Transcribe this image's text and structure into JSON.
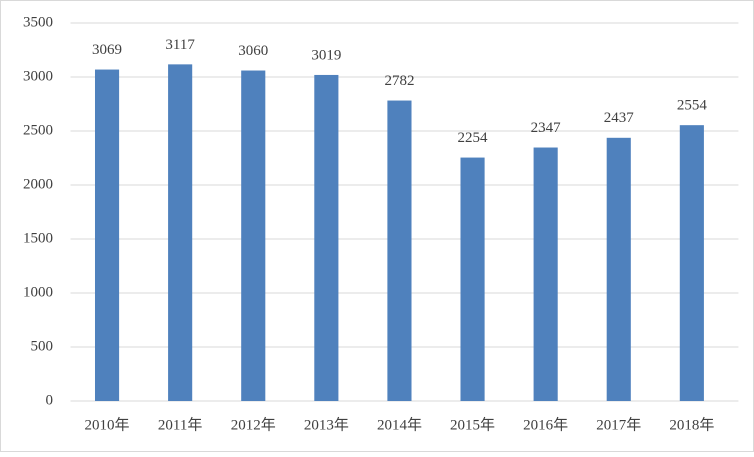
{
  "chart_data": {
    "type": "bar",
    "categories": [
      "2010年",
      "2011年",
      "2012年",
      "2013年",
      "2014年",
      "2015年",
      "2016年",
      "2017年",
      "2018年"
    ],
    "values": [
      3069,
      3117,
      3060,
      3019,
      2782,
      2254,
      2347,
      2437,
      2554
    ],
    "color": "#4f81bd",
    "ylim": [
      0,
      3500
    ],
    "yticks": [
      0,
      500,
      1000,
      1500,
      2000,
      2500,
      3000,
      3500
    ],
    "grid": true
  }
}
